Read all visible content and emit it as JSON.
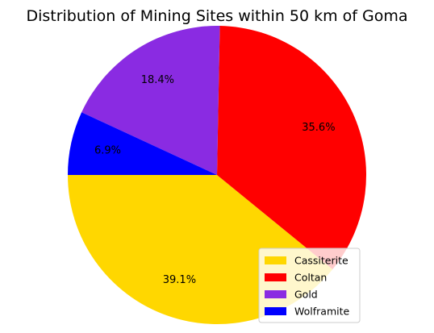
{
  "chart_data": {
    "type": "pie",
    "title": "Distribution of Mining Sites within 50 km of Goma",
    "categories": [
      "Cassiterite",
      "Coltan",
      "Gold",
      "Wolframite"
    ],
    "values": [
      39.1,
      35.6,
      18.4,
      6.9
    ],
    "labels": [
      "39.1%",
      "35.6%",
      "18.4%",
      "6.9%"
    ],
    "colors": [
      "#FFD700",
      "#FF0000",
      "#8A2BE2",
      "#0000FF"
    ],
    "start_angle_deg": 180,
    "direction": "counterclockwise",
    "legend": {
      "placement": "lower-right",
      "entries": [
        "Cassiterite",
        "Coltan",
        "Gold",
        "Wolframite"
      ]
    }
  }
}
